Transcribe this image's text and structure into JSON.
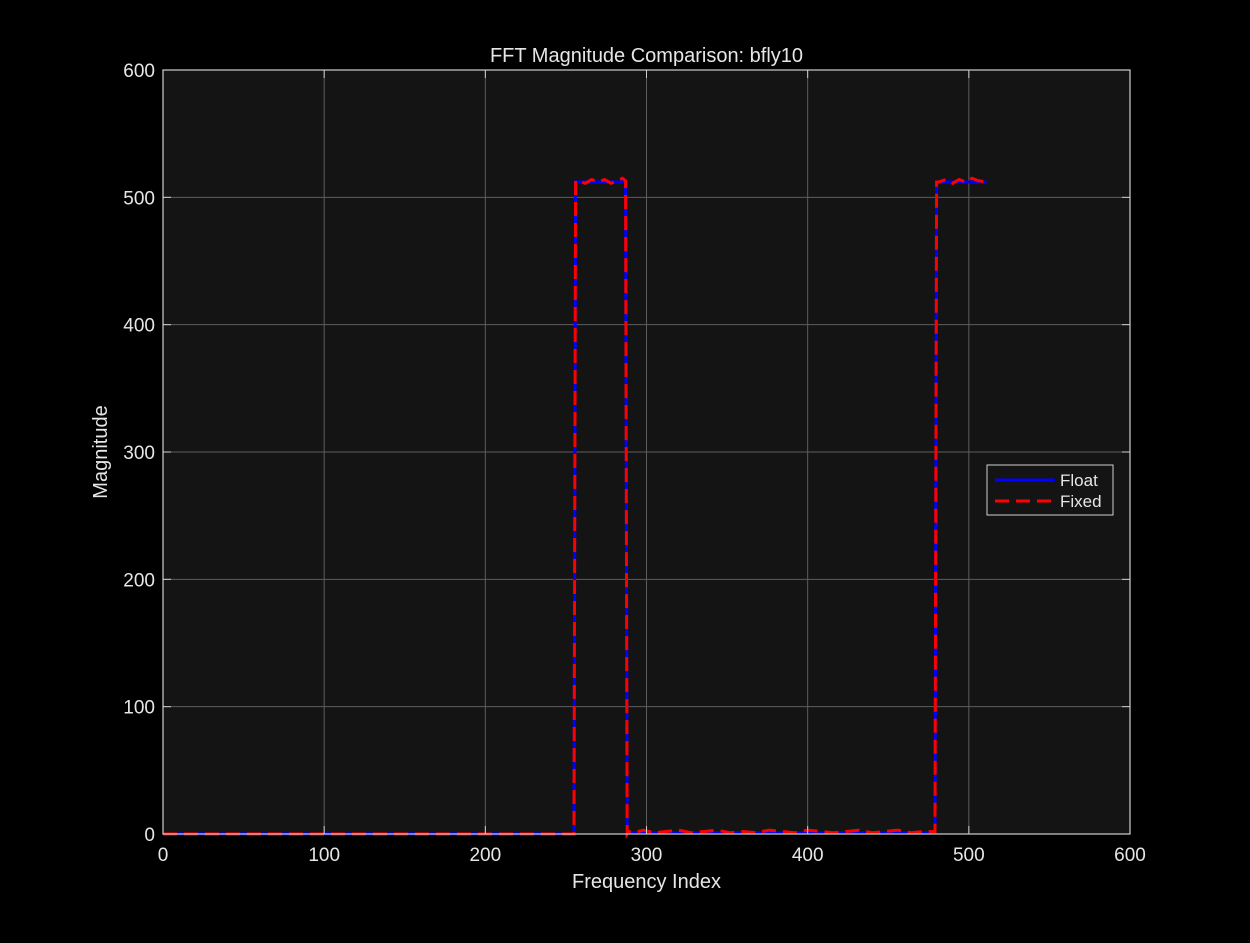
{
  "colors": {
    "figure_background": "#000000",
    "axes_background": "#141414",
    "axis_color": "#cfcfcf",
    "grid_color": "#5e5e5e",
    "text_color": "#e6e6e6",
    "float_color": "#0000ff",
    "fixed_color": "#ff0000"
  },
  "chart_data": {
    "type": "line",
    "title": "FFT Magnitude Comparison: bfly10",
    "xlabel": "Frequency Index",
    "ylabel": "Magnitude",
    "xlim": [
      0,
      600
    ],
    "ylim": [
      0,
      600
    ],
    "xticks": [
      0,
      100,
      200,
      300,
      400,
      500,
      600
    ],
    "yticks": [
      0,
      100,
      200,
      300,
      400,
      500,
      600
    ],
    "grid": true,
    "legend": {
      "position": "right",
      "entries": [
        "Float",
        "Fixed"
      ]
    },
    "series": [
      {
        "name": "Float",
        "style": "solid",
        "color": "#0000ff",
        "x": [
          0,
          255,
          256,
          257,
          260,
          265,
          270,
          275,
          280,
          285,
          287,
          288,
          289,
          295,
          310,
          330,
          350,
          370,
          390,
          410,
          430,
          450,
          470,
          479,
          480,
          481,
          485,
          490,
          495,
          500,
          505,
          511
        ],
        "y": [
          0,
          0,
          512,
          512,
          512,
          512,
          512,
          512,
          512,
          512,
          512,
          0,
          1,
          1,
          1,
          1,
          1,
          1,
          1,
          1,
          1,
          1,
          1,
          1,
          512,
          512,
          512,
          512,
          512,
          512,
          512,
          512
        ]
      },
      {
        "name": "Fixed",
        "style": "dashed",
        "color": "#ff0000",
        "x": [
          0,
          30,
          60,
          90,
          120,
          150,
          180,
          210,
          240,
          255,
          256,
          257,
          262,
          266,
          270,
          274,
          278,
          282,
          285,
          287,
          288,
          289,
          292,
          298,
          305,
          312,
          320,
          328,
          336,
          344,
          352,
          360,
          368,
          376,
          384,
          392,
          400,
          408,
          416,
          424,
          432,
          440,
          448,
          456,
          464,
          472,
          479,
          480,
          481,
          486,
          490,
          494,
          498,
          502,
          506,
          511
        ],
        "y": [
          0,
          0,
          0,
          0,
          0,
          0,
          0,
          0,
          0,
          0,
          513,
          513,
          511,
          514,
          512,
          514,
          511,
          513,
          515,
          513,
          0,
          2,
          1,
          3,
          1,
          2,
          3,
          1,
          2,
          3,
          1,
          2,
          1,
          3,
          2,
          1,
          3,
          2,
          1,
          2,
          3,
          1,
          2,
          3,
          1,
          2,
          2,
          512,
          512,
          514,
          511,
          514,
          512,
          515,
          513,
          512
        ]
      }
    ]
  }
}
